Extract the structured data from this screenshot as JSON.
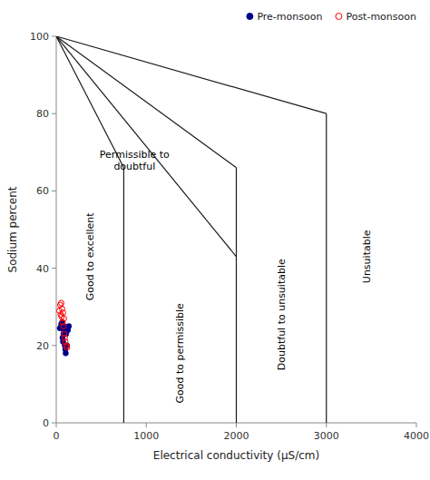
{
  "chart_data": {
    "type": "scatter",
    "xlabel": "Electrical conductivity (μS/cm)",
    "ylabel": "Sodium percent",
    "xlim": [
      0,
      4000
    ],
    "ylim": [
      0,
      100
    ],
    "xticks": [
      0,
      1000,
      2000,
      3000,
      4000
    ],
    "yticks": [
      0,
      20,
      40,
      60,
      80,
      100
    ],
    "grid": false,
    "legend": "upper right",
    "boundary_lines": [
      {
        "x": [
          0,
          750
        ],
        "y": [
          100,
          66
        ],
        "color": "#1a1a1a"
      },
      {
        "x": [
          0,
          2000
        ],
        "y": [
          100,
          66
        ],
        "color": "#1a1a1a"
      },
      {
        "x": [
          0,
          2000
        ],
        "y": [
          100,
          43
        ],
        "color": "#1a1a1a"
      },
      {
        "x": [
          0,
          3000
        ],
        "y": [
          100,
          80
        ],
        "color": "#1a1a1a"
      },
      {
        "x": [
          750,
          750
        ],
        "y": [
          0,
          66
        ],
        "color": "#1a1a1a"
      },
      {
        "x": [
          2000,
          2000
        ],
        "y": [
          0,
          66
        ],
        "color": "#1a1a1a"
      },
      {
        "x": [
          3000,
          3000
        ],
        "y": [
          0,
          80
        ],
        "color": "#1a1a1a"
      }
    ],
    "annotations": [
      {
        "text": "Good to excellent",
        "x": 375,
        "y": 43
      },
      {
        "text": "Permissible to\ndoubtful",
        "x": 870,
        "y": 68
      },
      {
        "text": "Good to permissible",
        "x": 1375,
        "y": 18
      },
      {
        "text": "Doubtful to unsuitable",
        "x": 2500,
        "y": 28
      },
      {
        "text": "Unsuitable",
        "x": 3450,
        "y": 43
      }
    ],
    "series": [
      {
        "name": "Pre-monsoon",
        "color": "#00008B",
        "marker": "circle",
        "x": [
          40,
          55,
          65,
          70,
          75,
          80,
          85,
          90,
          95,
          100,
          105,
          110,
          120,
          130,
          140
        ],
        "values": [
          24.5,
          25.5,
          26,
          22,
          21,
          23,
          24,
          25,
          20,
          19,
          18,
          23,
          20,
          24,
          25
        ]
      },
      {
        "name": "Post-monsoon",
        "color": "#FF0000",
        "marker": "open-circle",
        "x": [
          35,
          45,
          50,
          55,
          60,
          65,
          70,
          75,
          80,
          85,
          90,
          95,
          100,
          110,
          120
        ],
        "values": [
          29,
          30.5,
          28,
          31,
          27.5,
          29.5,
          26,
          28.5,
          25,
          27,
          23,
          22,
          21,
          20,
          19.5
        ]
      }
    ]
  }
}
